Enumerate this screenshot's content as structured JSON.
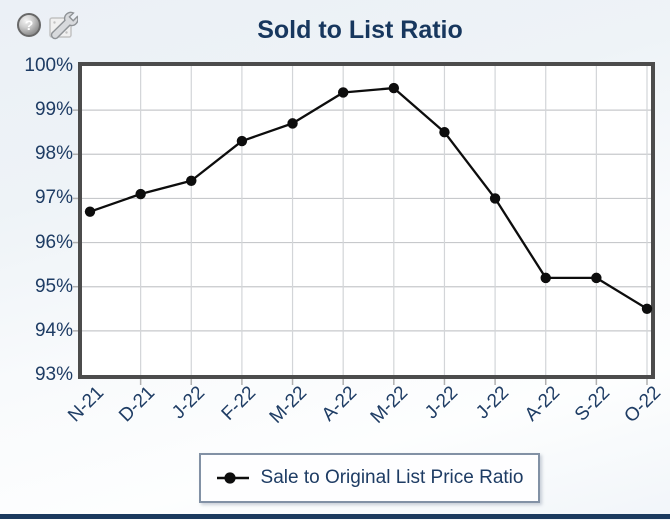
{
  "header": {
    "title": "Sold to List Ratio",
    "help_glyph": "?"
  },
  "chart_data": {
    "type": "line",
    "title": "Sold to List Ratio",
    "categories": [
      "N-21",
      "D-21",
      "J-22",
      "F-22",
      "M-22",
      "A-22",
      "M-22",
      "J-22",
      "J-22",
      "A-22",
      "S-22",
      "O-22"
    ],
    "series": [
      {
        "name": "Sale to Original List Price Ratio",
        "color": "#0D0D0D",
        "marker": "circle",
        "values": [
          96.7,
          97.1,
          97.4,
          98.3,
          98.7,
          99.4,
          99.5,
          98.5,
          97.0,
          95.2,
          95.2,
          94.5
        ]
      }
    ],
    "ylim": [
      93,
      100
    ],
    "y_ticks": [
      {
        "value": 100,
        "label": "100%"
      },
      {
        "value": 99,
        "label": "99%"
      },
      {
        "value": 98,
        "label": "98%"
      },
      {
        "value": 97,
        "label": "97%"
      },
      {
        "value": 96,
        "label": "96%"
      },
      {
        "value": 95,
        "label": "95%"
      },
      {
        "value": 94,
        "label": "94%"
      },
      {
        "value": 93,
        "label": "93%"
      }
    ],
    "x_tick_rotation": -45,
    "grid": true,
    "legend_position": "bottom",
    "colors": {
      "axis_label": "#1E3C64",
      "grid_h": "#C7C9CC",
      "grid_v": "#D3D5D8",
      "tick": "#B0B0B0",
      "plot_border": "#4C4C4C",
      "plot_bg": "#FFFFFF"
    }
  },
  "legend": {
    "marker": "filled-circle-with-line",
    "label": "Sale to Original List Price Ratio"
  },
  "footer": {
    "divider_color": "#1B3A5E"
  }
}
